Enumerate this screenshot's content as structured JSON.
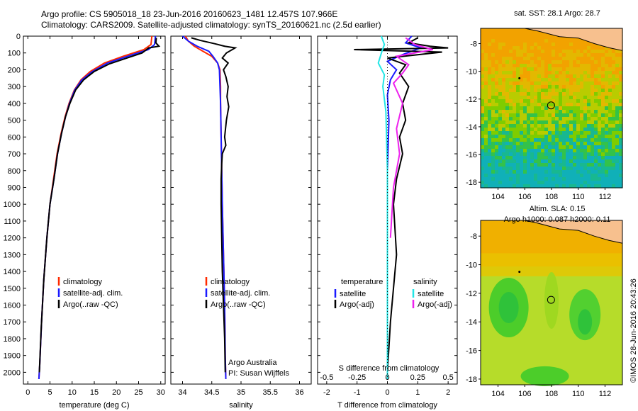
{
  "header": {
    "line1": "Argo profile: CS 5905018_18 23-Jun-2016 20160623_1481 12.457S 107.966E",
    "line2": "Climatology: CARS2009. Satellite-adjusted climatology: synTS_20160621.nc (2.5d earlier)"
  },
  "colors": {
    "climatology": "#ff2a00",
    "satellite": "#1a1aff",
    "argo": "#000000",
    "satellite_salinity": "#22e6e6",
    "argo_salinity": "#ee22ee"
  },
  "chart_data": [
    {
      "type": "line",
      "id": "temperature",
      "xlabel": "temperature (deg C)",
      "ylabel": "",
      "xlim": [
        -1,
        31
      ],
      "ylim": [
        2070,
        0
      ],
      "xticks": [
        "0",
        "5",
        "10",
        "15",
        "20",
        "25",
        "30"
      ],
      "yticks": [
        "0",
        "100",
        "200",
        "300",
        "400",
        "500",
        "600",
        "700",
        "800",
        "900",
        "1000",
        "1100",
        "1200",
        "1300",
        "1400",
        "1500",
        "1600",
        "1700",
        "1800",
        "1900",
        "2000"
      ],
      "legend": [
        "climatology",
        "satellite-adj. clim.",
        "Argo(..raw -QC)"
      ],
      "series": [
        {
          "name": "climatology",
          "color": "#ff2a00",
          "x": [
            28.0,
            27.8,
            26.2,
            21.5,
            17.3,
            14.1,
            12.0,
            10.5,
            9.3,
            8.4,
            7.5,
            6.6,
            5.8,
            5.0,
            4.3,
            3.6,
            3.1,
            2.7,
            2.5
          ],
          "y": [
            0,
            50,
            80,
            120,
            160,
            210,
            260,
            320,
            400,
            480,
            580,
            700,
            850,
            1000,
            1200,
            1450,
            1700,
            1950,
            2040
          ]
        },
        {
          "name": "satellite-adj. clim.",
          "color": "#1a1aff",
          "x": [
            28.8,
            28.6,
            27.2,
            22.5,
            18.0,
            14.6,
            12.2,
            10.6,
            9.4,
            8.5,
            7.6,
            6.7,
            5.9,
            5.0,
            4.3,
            3.6,
            3.1,
            2.7,
            2.5
          ],
          "y": [
            0,
            50,
            80,
            120,
            160,
            210,
            260,
            320,
            400,
            480,
            580,
            700,
            850,
            1000,
            1200,
            1450,
            1700,
            1950,
            2040
          ]
        },
        {
          "name": "Argo(..raw -QC)",
          "color": "#000000",
          "x": [
            29.0,
            28.9,
            29.6,
            27.3,
            26.8,
            25.8,
            22.4,
            18.4,
            15.0,
            12.6,
            10.8,
            9.5,
            8.5,
            7.6,
            6.7,
            5.9,
            5.0,
            4.3,
            3.6,
            3.0,
            2.6
          ],
          "y": [
            10,
            40,
            60,
            70,
            80,
            100,
            130,
            165,
            210,
            260,
            320,
            400,
            480,
            580,
            700,
            850,
            1000,
            1200,
            1450,
            1750,
            2000
          ]
        }
      ]
    },
    {
      "type": "line",
      "id": "salinity",
      "xlabel": "salinity",
      "xlim": [
        33.8,
        36.2
      ],
      "ylim": [
        2070,
        0
      ],
      "xticks": [
        "34",
        "34.5",
        "35",
        "35.5",
        "36"
      ],
      "legend": [
        "climatology",
        "satellite-adj. clim.",
        "Argo(..raw -QC)"
      ],
      "annotation": [
        "Argo Australia",
        "PI: Susan Wijffels"
      ],
      "series": [
        {
          "name": "climatology",
          "color": "#ff2a00",
          "x": [
            34.05,
            34.1,
            34.2,
            34.35,
            34.5,
            34.6,
            34.64,
            34.65,
            34.65,
            34.66,
            34.67,
            34.68,
            34.7,
            34.72,
            34.73,
            34.74
          ],
          "y": [
            0,
            30,
            60,
            90,
            120,
            160,
            200,
            300,
            400,
            600,
            800,
            1000,
            1300,
            1600,
            1900,
            2040
          ]
        },
        {
          "name": "satellite-adj. clim.",
          "color": "#1a1aff",
          "x": [
            34.0,
            34.1,
            34.25,
            34.45,
            34.52,
            34.6,
            34.63,
            34.64,
            34.65,
            34.66,
            34.67,
            34.68,
            34.7,
            34.72,
            34.73,
            34.74
          ],
          "y": [
            0,
            30,
            60,
            90,
            120,
            160,
            200,
            300,
            400,
            600,
            800,
            1000,
            1300,
            1600,
            1900,
            2040
          ]
        },
        {
          "name": "Argo(..raw -QC)",
          "color": "#000000",
          "x": [
            34.15,
            34.3,
            34.55,
            34.72,
            34.9,
            34.75,
            34.68,
            34.78,
            34.7,
            34.74,
            34.78,
            34.76,
            34.79,
            34.75,
            34.72,
            34.74,
            34.68,
            34.67,
            34.66,
            34.66,
            34.67,
            34.68,
            34.7,
            34.72,
            34.73
          ],
          "y": [
            10,
            25,
            45,
            60,
            70,
            100,
            130,
            160,
            200,
            240,
            300,
            360,
            420,
            500,
            600,
            650,
            700,
            760,
            850,
            1000,
            1200,
            1400,
            1600,
            1800,
            2000
          ]
        }
      ]
    },
    {
      "type": "line",
      "id": "difference",
      "xlabel": "T difference from climatology",
      "title": "S difference from climatology",
      "xlim": [
        -2.3,
        2.3
      ],
      "ylim": [
        2070,
        0
      ],
      "xticks": [
        "-2",
        "-1",
        "0",
        "1",
        "2"
      ],
      "xticks_top": [
        "-0.5",
        "-0.25",
        "0",
        "0.25",
        "0.5"
      ],
      "legend_temperature": [
        "temperature",
        "satellite",
        "Argo(-adj)"
      ],
      "legend_salinity": [
        "salinity",
        "satellite",
        "Argo(-adj)"
      ],
      "series": [
        {
          "name": "T satellite",
          "color": "#1a1aff",
          "x": [
            0.8,
            0.6,
            1.1,
            0.5,
            0.0,
            0.3,
            0.1,
            0.0,
            0.05,
            0.0,
            0.0,
            0.0,
            0.0
          ],
          "y": [
            0,
            40,
            70,
            110,
            150,
            200,
            260,
            350,
            500,
            800,
            1200,
            1600,
            2040
          ]
        },
        {
          "name": "T Argo(-adj)",
          "color": "#000000",
          "x": [
            1.0,
            0.7,
            1.4,
            2.0,
            -1.1,
            1.8,
            0.0,
            0.6,
            0.4,
            0.7,
            0.5,
            0.6,
            0.4,
            0.5,
            0.3,
            0.2,
            0.3,
            0.1,
            0.0
          ],
          "y": [
            10,
            40,
            60,
            70,
            80,
            95,
            130,
            170,
            220,
            300,
            400,
            500,
            600,
            700,
            850,
            1000,
            1300,
            1700,
            2000
          ]
        },
        {
          "name": "S satellite",
          "color": "#22e6e6",
          "x": [
            -0.2,
            -0.1,
            -0.18,
            -0.3,
            -0.1,
            -0.15,
            -0.05,
            0.0,
            0.0,
            0.0
          ],
          "y": [
            0,
            50,
            90,
            160,
            230,
            300,
            450,
            800,
            1400,
            2040
          ]
        },
        {
          "name": "S Argo(-adj)",
          "color": "#ee22ee",
          "x": [
            0.6,
            0.9,
            1.5,
            0.3,
            0.7,
            0.5,
            0.2,
            0.5,
            0.3,
            0.4,
            0.2,
            0.1
          ],
          "y": [
            10,
            50,
            80,
            120,
            170,
            220,
            280,
            400,
            550,
            700,
            900,
            1200
          ]
        }
      ]
    },
    {
      "type": "heatmap",
      "id": "sst-map",
      "title": "sat. SST: 28.1  Argo: 28.7",
      "xlim": [
        102.7,
        113.3
      ],
      "ylim": [
        -18.4,
        -6.9
      ],
      "xticks": [
        "104",
        "106",
        "108",
        "110",
        "112"
      ],
      "yticks": [
        "-8",
        "-10",
        "-12",
        "-14",
        "-16",
        "-18"
      ],
      "marker": {
        "lon": 107.966,
        "lat": -12.457
      }
    },
    {
      "type": "heatmap",
      "id": "sla-map",
      "title": "Altim. SLA: 0.15",
      "subtitle": "Argo h1000: 0.087 h2000: 0.11",
      "xlim": [
        102.7,
        113.3
      ],
      "ylim": [
        -18.4,
        -6.9
      ],
      "xticks": [
        "104",
        "106",
        "108",
        "110",
        "112"
      ],
      "yticks": [
        "-8",
        "-10",
        "-12",
        "-14",
        "-16",
        "-18"
      ],
      "marker": {
        "lon": 107.966,
        "lat": -12.457
      }
    }
  ],
  "credit": "©IMOS 28-Jun-2016 20:43:26"
}
